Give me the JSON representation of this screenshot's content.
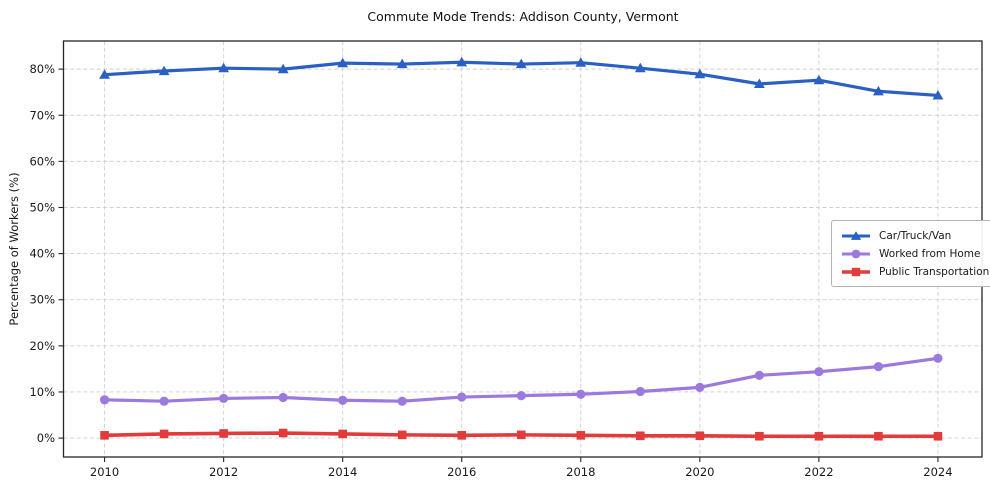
{
  "chart_data": {
    "type": "line",
    "title": "Commute Mode Trends: Addison County, Vermont",
    "xlabel": "",
    "ylabel": "Percentage of Workers (%)",
    "x": [
      2010,
      2011,
      2012,
      2013,
      2014,
      2015,
      2016,
      2017,
      2018,
      2019,
      2020,
      2021,
      2022,
      2023,
      2024
    ],
    "x_ticks": [
      2010,
      2012,
      2014,
      2016,
      2018,
      2020,
      2022,
      2024
    ],
    "y_ticks": [
      0,
      10,
      20,
      30,
      40,
      50,
      60,
      70,
      80
    ],
    "y_tick_suffix": "%",
    "xlim": [
      2009.31,
      2024.74
    ],
    "ylim": [
      -4.1,
      86.1
    ],
    "grid": true,
    "grid_style": "dashed",
    "legend_position": "center-right",
    "series": [
      {
        "name": "Car/Truck/Van",
        "marker": "triangle",
        "color": "#2a5fc4",
        "values": [
          78.8,
          79.6,
          80.2,
          80.0,
          81.3,
          81.1,
          81.5,
          81.1,
          81.4,
          80.2,
          78.9,
          76.8,
          77.6,
          75.2,
          74.3
        ]
      },
      {
        "name": "Worked from Home",
        "marker": "circle",
        "color": "#9b79dd",
        "values": [
          8.3,
          8.0,
          8.6,
          8.8,
          8.2,
          8.0,
          8.9,
          9.2,
          9.5,
          10.1,
          11.0,
          13.6,
          14.4,
          15.5,
          17.3
        ]
      },
      {
        "name": "Public Transportation",
        "marker": "square",
        "color": "#e23b3b",
        "values": [
          0.6,
          0.9,
          1.0,
          1.1,
          0.9,
          0.7,
          0.6,
          0.7,
          0.6,
          0.5,
          0.5,
          0.4,
          0.4,
          0.4,
          0.4
        ]
      }
    ],
    "colors": {
      "grid": "#cfcfcf",
      "spine": "#262626",
      "text": "#1a1a1a",
      "background": "#ffffff",
      "legend_border": "#b3b3b3"
    }
  }
}
